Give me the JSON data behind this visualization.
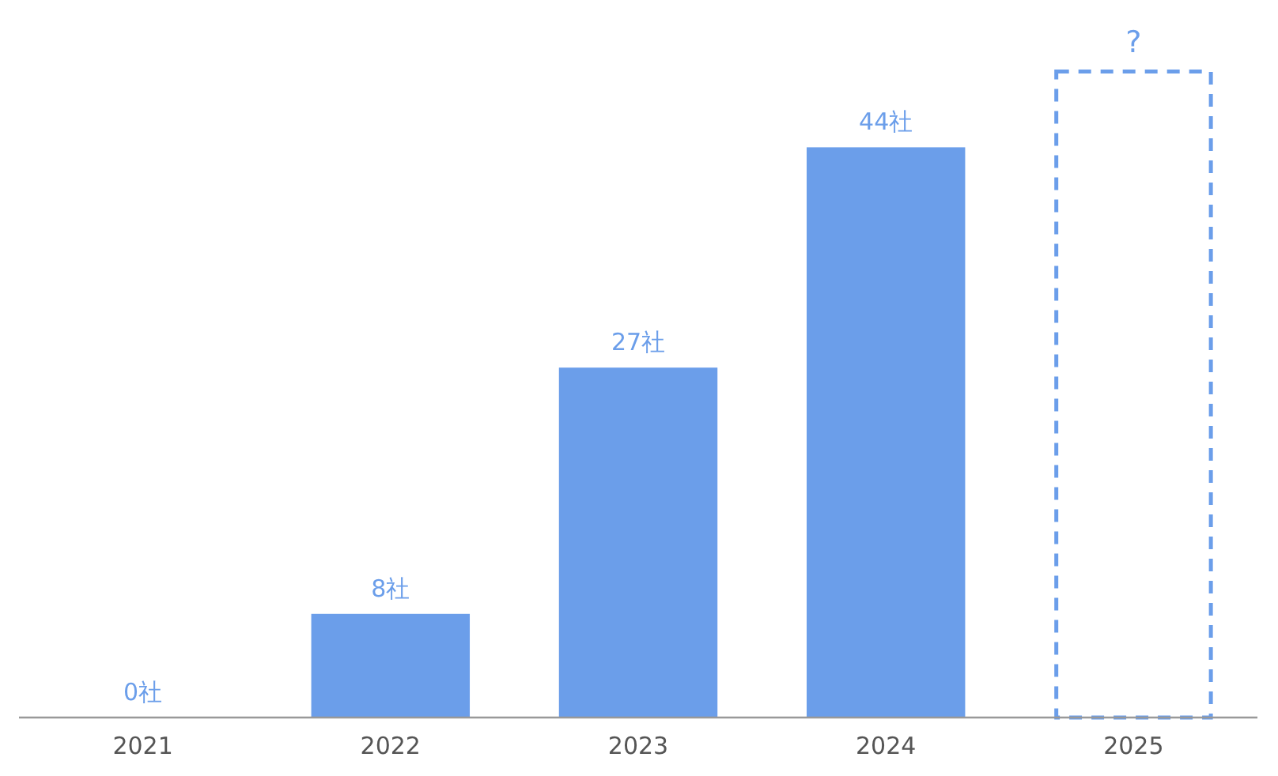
{
  "chart_data": {
    "type": "bar",
    "categories": [
      "2021",
      "2022",
      "2023",
      "2024",
      "2025"
    ],
    "series": [
      {
        "color": "#6b9eea",
        "values": [
          0,
          8,
          27,
          44,
          null
        ],
        "value_labels": [
          "0社",
          "8社",
          "27社",
          "44社",
          null
        ]
      },
      {
        "color": "#6b9eea",
        "line_style": "dashed",
        "values": [
          null,
          null,
          null,
          null,
          50
        ],
        "value_labels": [
          null,
          null,
          null,
          null,
          "?"
        ]
      }
    ]
  }
}
